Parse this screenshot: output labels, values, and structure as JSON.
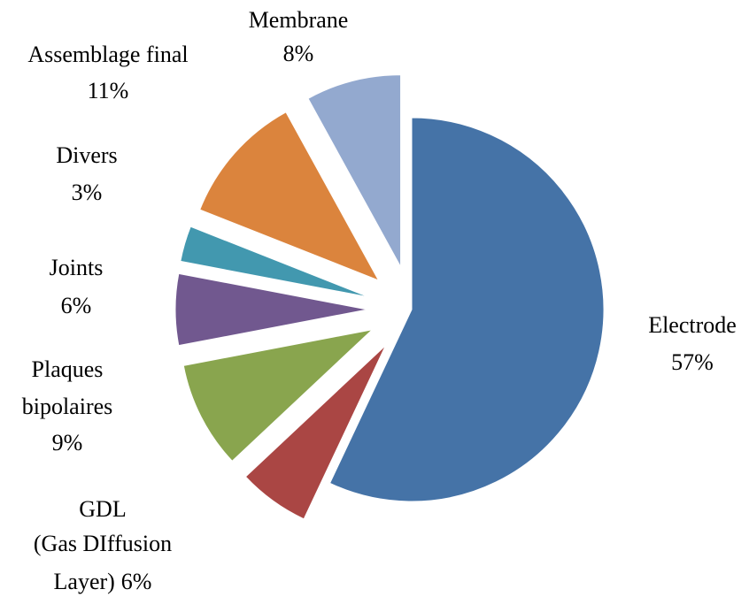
{
  "chart_data": {
    "type": "pie",
    "categories": [
      "Electrode",
      "GDL (Gas DIffusion Layer)",
      "Plaques bipolaires",
      "Joints",
      "Divers",
      "Assemblage final",
      "Membrane"
    ],
    "values": [
      57,
      6,
      9,
      6,
      3,
      11,
      8
    ],
    "value_labels": [
      "57%",
      "6%",
      "9%",
      "6%",
      "3%",
      "11%",
      "8%"
    ],
    "colors": [
      "#4573a7",
      "#aa4644",
      "#89a54e",
      "#71588f",
      "#4298af",
      "#db843d",
      "#93a9cf"
    ]
  }
}
